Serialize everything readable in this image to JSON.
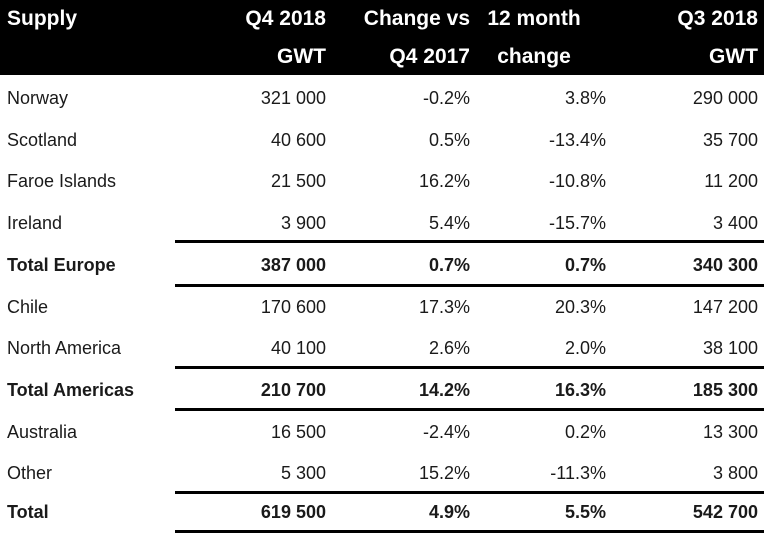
{
  "header": {
    "supply": "Supply",
    "col1_line1": "Q4 2018",
    "col1_line2": "GWT",
    "col2_line1": "Change vs",
    "col2_line2": "Q4 2017",
    "col3_line1": "12 month",
    "col3_line2": "change",
    "col4_line1": "Q3 2018",
    "col4_line2": "GWT"
  },
  "rows": [
    {
      "name": "Norway",
      "q4_2018": "321 000",
      "change_vs_q4_2017": "-0.2%",
      "change_12m": "3.8%",
      "q3_2018": "290 000"
    },
    {
      "name": "Scotland",
      "q4_2018": "40 600",
      "change_vs_q4_2017": "0.5%",
      "change_12m": "-13.4%",
      "q3_2018": "35 700"
    },
    {
      "name": "Faroe Islands",
      "q4_2018": "21 500",
      "change_vs_q4_2017": "16.2%",
      "change_12m": "-10.8%",
      "q3_2018": "11 200"
    },
    {
      "name": "Ireland",
      "q4_2018": "3 900",
      "change_vs_q4_2017": "5.4%",
      "change_12m": "-15.7%",
      "q3_2018": "3 400"
    },
    {
      "name": "Total Europe",
      "q4_2018": "387 000",
      "change_vs_q4_2017": "0.7%",
      "change_12m": "0.7%",
      "q3_2018": "340 300"
    },
    {
      "name": "Chile",
      "q4_2018": "170 600",
      "change_vs_q4_2017": "17.3%",
      "change_12m": "20.3%",
      "q3_2018": "147 200"
    },
    {
      "name": "North America",
      "q4_2018": "40 100",
      "change_vs_q4_2017": "2.6%",
      "change_12m": "2.0%",
      "q3_2018": "38 100"
    },
    {
      "name": "Total Americas",
      "q4_2018": "210 700",
      "change_vs_q4_2017": "14.2%",
      "change_12m": "16.3%",
      "q3_2018": "185 300"
    },
    {
      "name": "Australia",
      "q4_2018": "16 500",
      "change_vs_q4_2017": "-2.4%",
      "change_12m": "0.2%",
      "q3_2018": "13 300"
    },
    {
      "name": "Other",
      "q4_2018": "5 300",
      "change_vs_q4_2017": "15.2%",
      "change_12m": "-11.3%",
      "q3_2018": "3 800"
    },
    {
      "name": "Total",
      "q4_2018": "619 500",
      "change_vs_q4_2017": "4.9%",
      "change_12m": "5.5%",
      "q3_2018": "542 700"
    }
  ],
  "colors": {
    "header_bg": "#000000",
    "header_text": "#ffffff",
    "rule": "#000000"
  }
}
